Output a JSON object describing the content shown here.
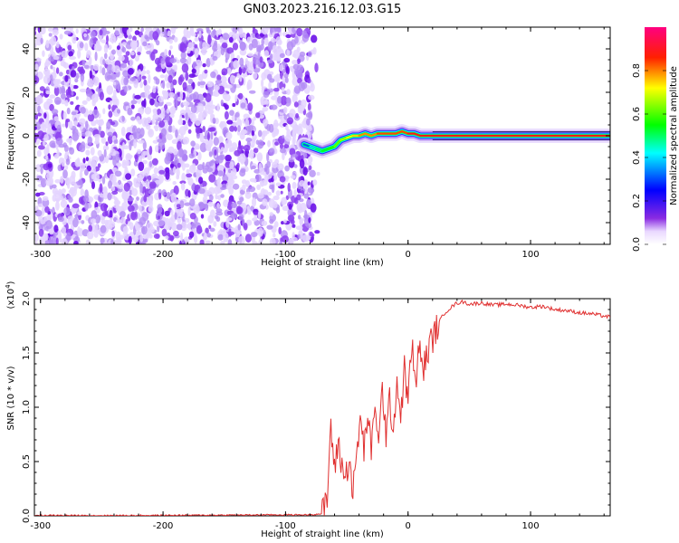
{
  "title": "GN03.2023.216.12.03.G15",
  "chart_data": [
    {
      "type": "heatmap",
      "xlabel": "Height of straight line (km)",
      "ylabel": "Frequency (Hz)",
      "xlim": [
        -305,
        165
      ],
      "ylim": [
        -50,
        50
      ],
      "xticks": [
        -300,
        -200,
        -100,
        0,
        100
      ],
      "yticks": [
        -40,
        -20,
        0,
        20,
        40
      ],
      "colorbar": {
        "label": "Normalized spectral amplitude",
        "range": [
          0.0,
          1.0
        ],
        "ticks": [
          0.0,
          0.2,
          0.4,
          0.6,
          0.8
        ],
        "colormap": [
          "#ffffff",
          "#8a2be2",
          "#0000ff",
          "#00ffff",
          "#00ff00",
          "#ffff00",
          "#ff0000",
          "#ff0080"
        ]
      },
      "noise_region": {
        "x_range": [
          -305,
          -78
        ],
        "freq_range": [
          -50,
          50
        ],
        "typical_amplitude": 0.1
      },
      "signal_track": {
        "x": [
          -85,
          -80,
          -75,
          -70,
          -65,
          -60,
          -55,
          -50,
          -45,
          -40,
          -35,
          -30,
          -25,
          -20,
          -15,
          -10,
          -5,
          0,
          5,
          10,
          15,
          20,
          40,
          60,
          80,
          100,
          120,
          140,
          165
        ],
        "freq": [
          -4,
          -5,
          -6,
          -7,
          -6,
          -5,
          -2,
          -1,
          0,
          0,
          1,
          0,
          1,
          1,
          1,
          1,
          2,
          1,
          1,
          0,
          0,
          0,
          0,
          0,
          0,
          0,
          0,
          0,
          0
        ],
        "amplitude": [
          0.35,
          0.45,
          0.55,
          0.6,
          0.65,
          0.7,
          0.75,
          0.8,
          0.85,
          0.9,
          0.9,
          0.9,
          0.95,
          0.95,
          0.95,
          0.95,
          0.95,
          1.0,
          1.0,
          1.0,
          1.0,
          1.0,
          1.0,
          1.0,
          1.0,
          1.0,
          1.0,
          1.0,
          1.0
        ]
      }
    },
    {
      "type": "line",
      "xlabel": "Height of straight line (km)",
      "ylabel": "SNR (10 * v/v)",
      "multiplier_label": "(x10",
      "multiplier_exp": "4",
      "multiplier_close": ")",
      "xlim": [
        -305,
        165
      ],
      "ylim": [
        0.0,
        2.0
      ],
      "xticks": [
        -300,
        -200,
        -100,
        0,
        100
      ],
      "yticks": [
        "0.0",
        "0.5",
        "1.0",
        "1.5",
        "2.0"
      ],
      "color": "#e03030",
      "series": [
        {
          "x": [
            -305,
            -250,
            -200,
            -150,
            -100,
            -80,
            -70,
            -66,
            -63,
            -60,
            -57,
            -54,
            -51,
            -48,
            -45,
            -42,
            -39,
            -36,
            -33,
            -30,
            -27,
            -24,
            -21,
            -18,
            -15,
            -12,
            -9,
            -6,
            -3,
            0,
            3,
            6,
            9,
            12,
            15,
            18,
            21,
            24,
            27,
            30,
            35,
            40,
            45,
            50,
            60,
            70,
            80,
            90,
            100,
            110,
            120,
            130,
            140,
            150,
            160,
            165
          ],
          "y": [
            0.005,
            0.003,
            0.005,
            0.007,
            0.01,
            0.01,
            0.02,
            0.15,
            0.85,
            0.4,
            0.7,
            0.45,
            0.35,
            0.55,
            0.2,
            0.55,
            0.9,
            0.6,
            0.95,
            0.55,
            1.1,
            0.6,
            1.2,
            0.75,
            1.05,
            0.8,
            1.25,
            0.9,
            1.35,
            1.05,
            1.6,
            1.2,
            1.55,
            1.35,
            1.45,
            1.6,
            1.65,
            1.75,
            1.82,
            1.87,
            1.92,
            1.96,
            1.97,
            1.95,
            1.96,
            1.94,
            1.95,
            1.94,
            1.92,
            1.93,
            1.9,
            1.89,
            1.87,
            1.86,
            1.84,
            1.83
          ]
        }
      ]
    }
  ]
}
